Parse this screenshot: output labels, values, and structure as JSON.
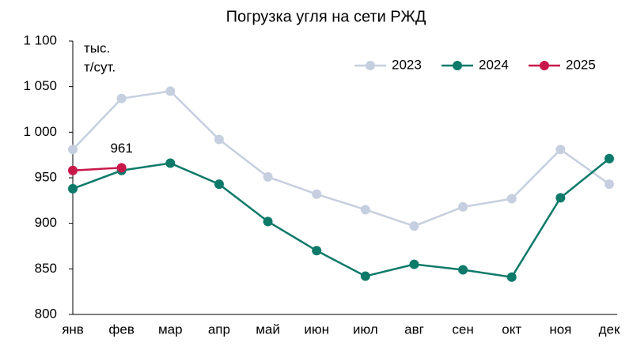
{
  "chart_data": {
    "type": "line",
    "title": "Погрузка угля на сети РЖД",
    "unit_label": [
      "тыс.",
      "т/сут."
    ],
    "categories": [
      "янв",
      "фев",
      "мар",
      "апр",
      "май",
      "июн",
      "июл",
      "авг",
      "сен",
      "окт",
      "ноя",
      "дек"
    ],
    "series": [
      {
        "name": "2023",
        "color": "#c5cfdf",
        "values": [
          981,
          1037,
          1045,
          992,
          951,
          932,
          915,
          897,
          918,
          927,
          981,
          943
        ]
      },
      {
        "name": "2024",
        "color": "#0e7a6a",
        "values": [
          938,
          958,
          966,
          943,
          902,
          870,
          842,
          855,
          849,
          841,
          928,
          971
        ]
      },
      {
        "name": "2025",
        "color": "#c8184a",
        "values": [
          958,
          961,
          null,
          null,
          null,
          null,
          null,
          null,
          null,
          null,
          null,
          null
        ]
      }
    ],
    "ylim": [
      800,
      1100
    ],
    "yticks": [
      800,
      850,
      900,
      950,
      {
        "value": 1000,
        "label": "1 000"
      },
      {
        "value": 1050,
        "label": "1 050"
      },
      {
        "value": 1100,
        "label": "1 100"
      }
    ],
    "grid": false,
    "legend": "top-right"
  }
}
